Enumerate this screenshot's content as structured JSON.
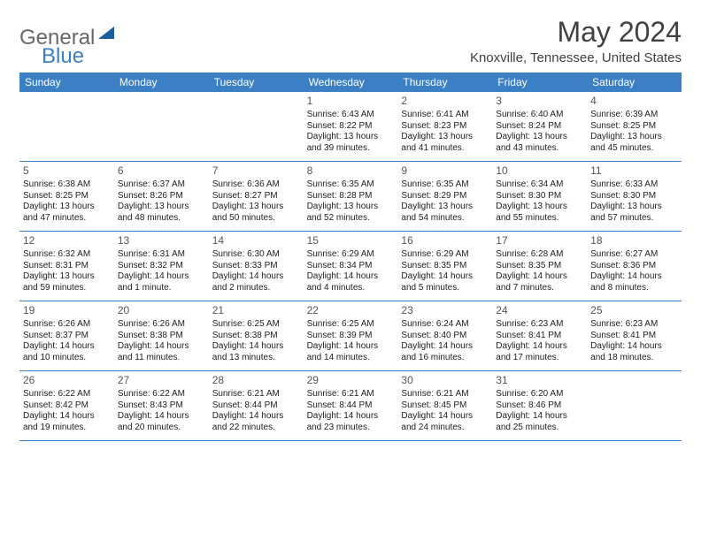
{
  "brand": {
    "text1": "General",
    "text2": "Blue",
    "text_color_general": "#686868",
    "text_color_blue": "#3b7fc4",
    "shape_color": "#1a5fa0"
  },
  "title": "May 2024",
  "location": "Knoxville, Tennessee, United States",
  "colors": {
    "header_bg": "#3b7fc4",
    "header_text": "#ffffff",
    "divider": "#3b7fc4",
    "background": "#ffffff",
    "title_color": "#404040",
    "body_text": "#202020",
    "date_color": "#555555"
  },
  "day_names": [
    "Sunday",
    "Monday",
    "Tuesday",
    "Wednesday",
    "Thursday",
    "Friday",
    "Saturday"
  ],
  "weeks": [
    [
      null,
      null,
      null,
      {
        "d": "1",
        "sr": "6:43 AM",
        "ss": "8:22 PM",
        "dl": "13 hours and 39 minutes."
      },
      {
        "d": "2",
        "sr": "6:41 AM",
        "ss": "8:23 PM",
        "dl": "13 hours and 41 minutes."
      },
      {
        "d": "3",
        "sr": "6:40 AM",
        "ss": "8:24 PM",
        "dl": "13 hours and 43 minutes."
      },
      {
        "d": "4",
        "sr": "6:39 AM",
        "ss": "8:25 PM",
        "dl": "13 hours and 45 minutes."
      }
    ],
    [
      {
        "d": "5",
        "sr": "6:38 AM",
        "ss": "8:25 PM",
        "dl": "13 hours and 47 minutes."
      },
      {
        "d": "6",
        "sr": "6:37 AM",
        "ss": "8:26 PM",
        "dl": "13 hours and 48 minutes."
      },
      {
        "d": "7",
        "sr": "6:36 AM",
        "ss": "8:27 PM",
        "dl": "13 hours and 50 minutes."
      },
      {
        "d": "8",
        "sr": "6:35 AM",
        "ss": "8:28 PM",
        "dl": "13 hours and 52 minutes."
      },
      {
        "d": "9",
        "sr": "6:35 AM",
        "ss": "8:29 PM",
        "dl": "13 hours and 54 minutes."
      },
      {
        "d": "10",
        "sr": "6:34 AM",
        "ss": "8:30 PM",
        "dl": "13 hours and 55 minutes."
      },
      {
        "d": "11",
        "sr": "6:33 AM",
        "ss": "8:30 PM",
        "dl": "13 hours and 57 minutes."
      }
    ],
    [
      {
        "d": "12",
        "sr": "6:32 AM",
        "ss": "8:31 PM",
        "dl": "13 hours and 59 minutes."
      },
      {
        "d": "13",
        "sr": "6:31 AM",
        "ss": "8:32 PM",
        "dl": "14 hours and 1 minute."
      },
      {
        "d": "14",
        "sr": "6:30 AM",
        "ss": "8:33 PM",
        "dl": "14 hours and 2 minutes."
      },
      {
        "d": "15",
        "sr": "6:29 AM",
        "ss": "8:34 PM",
        "dl": "14 hours and 4 minutes."
      },
      {
        "d": "16",
        "sr": "6:29 AM",
        "ss": "8:35 PM",
        "dl": "14 hours and 5 minutes."
      },
      {
        "d": "17",
        "sr": "6:28 AM",
        "ss": "8:35 PM",
        "dl": "14 hours and 7 minutes."
      },
      {
        "d": "18",
        "sr": "6:27 AM",
        "ss": "8:36 PM",
        "dl": "14 hours and 8 minutes."
      }
    ],
    [
      {
        "d": "19",
        "sr": "6:26 AM",
        "ss": "8:37 PM",
        "dl": "14 hours and 10 minutes."
      },
      {
        "d": "20",
        "sr": "6:26 AM",
        "ss": "8:38 PM",
        "dl": "14 hours and 11 minutes."
      },
      {
        "d": "21",
        "sr": "6:25 AM",
        "ss": "8:38 PM",
        "dl": "14 hours and 13 minutes."
      },
      {
        "d": "22",
        "sr": "6:25 AM",
        "ss": "8:39 PM",
        "dl": "14 hours and 14 minutes."
      },
      {
        "d": "23",
        "sr": "6:24 AM",
        "ss": "8:40 PM",
        "dl": "14 hours and 16 minutes."
      },
      {
        "d": "24",
        "sr": "6:23 AM",
        "ss": "8:41 PM",
        "dl": "14 hours and 17 minutes."
      },
      {
        "d": "25",
        "sr": "6:23 AM",
        "ss": "8:41 PM",
        "dl": "14 hours and 18 minutes."
      }
    ],
    [
      {
        "d": "26",
        "sr": "6:22 AM",
        "ss": "8:42 PM",
        "dl": "14 hours and 19 minutes."
      },
      {
        "d": "27",
        "sr": "6:22 AM",
        "ss": "8:43 PM",
        "dl": "14 hours and 20 minutes."
      },
      {
        "d": "28",
        "sr": "6:21 AM",
        "ss": "8:44 PM",
        "dl": "14 hours and 22 minutes."
      },
      {
        "d": "29",
        "sr": "6:21 AM",
        "ss": "8:44 PM",
        "dl": "14 hours and 23 minutes."
      },
      {
        "d": "30",
        "sr": "6:21 AM",
        "ss": "8:45 PM",
        "dl": "14 hours and 24 minutes."
      },
      {
        "d": "31",
        "sr": "6:20 AM",
        "ss": "8:46 PM",
        "dl": "14 hours and 25 minutes."
      },
      null
    ]
  ],
  "labels": {
    "sunrise": "Sunrise:",
    "sunset": "Sunset:",
    "daylight": "Daylight:"
  }
}
